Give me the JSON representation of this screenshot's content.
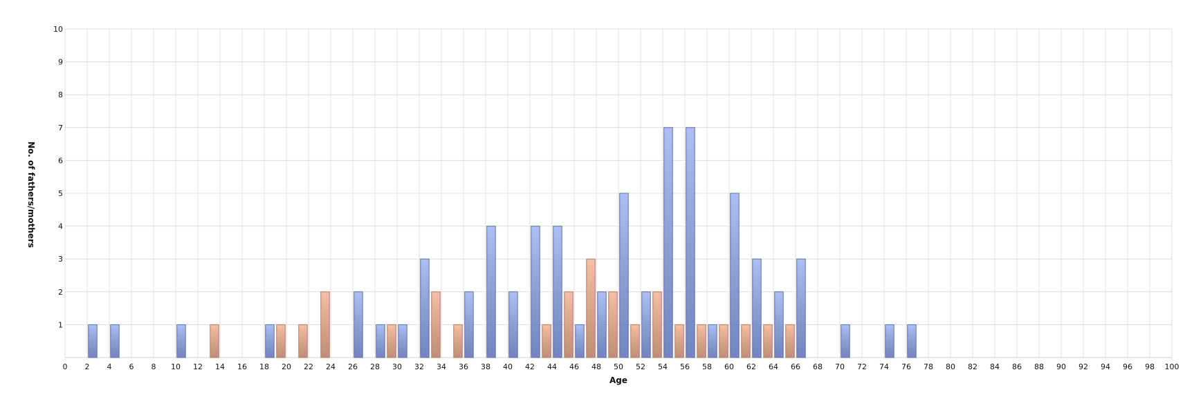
{
  "chart_data": {
    "type": "bar",
    "title": "",
    "xlabel": "Age",
    "ylabel": "No. of fathers/mothers",
    "xlim": [
      0,
      100
    ],
    "ylim": [
      0,
      10
    ],
    "x_tick_step": 2,
    "y_ticks": [
      1,
      2,
      3,
      4,
      5,
      6,
      7,
      8,
      9,
      10
    ],
    "grid": true,
    "legend": "none",
    "series": [
      {
        "color": "#a9c1f5",
        "edge": "#5a6fb5",
        "points": [
          {
            "x": 2.5,
            "y": 1
          },
          {
            "x": 4.5,
            "y": 1
          },
          {
            "x": 10.5,
            "y": 1
          },
          {
            "x": 18.5,
            "y": 1
          },
          {
            "x": 26.5,
            "y": 2
          },
          {
            "x": 28.5,
            "y": 1
          },
          {
            "x": 30.5,
            "y": 1
          },
          {
            "x": 32.5,
            "y": 3
          },
          {
            "x": 36.5,
            "y": 2
          },
          {
            "x": 38.5,
            "y": 4
          },
          {
            "x": 40.5,
            "y": 2
          },
          {
            "x": 42.5,
            "y": 4
          },
          {
            "x": 44.5,
            "y": 4
          },
          {
            "x": 46.5,
            "y": 1
          },
          {
            "x": 48.5,
            "y": 2
          },
          {
            "x": 50.5,
            "y": 5
          },
          {
            "x": 52.5,
            "y": 2
          },
          {
            "x": 54.5,
            "y": 7
          },
          {
            "x": 56.5,
            "y": 7
          },
          {
            "x": 58.5,
            "y": 1
          },
          {
            "x": 60.5,
            "y": 5
          },
          {
            "x": 62.5,
            "y": 3
          },
          {
            "x": 64.5,
            "y": 2
          },
          {
            "x": 66.5,
            "y": 3
          },
          {
            "x": 70.5,
            "y": 1
          },
          {
            "x": 74.5,
            "y": 1
          },
          {
            "x": 76.5,
            "y": 1
          }
        ]
      },
      {
        "color": "#f7bfa6",
        "edge": "#b57a62",
        "points": [
          {
            "x": 13.5,
            "y": 1
          },
          {
            "x": 19.5,
            "y": 1
          },
          {
            "x": 21.5,
            "y": 1
          },
          {
            "x": 23.5,
            "y": 2
          },
          {
            "x": 29.5,
            "y": 1
          },
          {
            "x": 33.5,
            "y": 2
          },
          {
            "x": 35.5,
            "y": 1
          },
          {
            "x": 43.5,
            "y": 1
          },
          {
            "x": 45.5,
            "y": 2
          },
          {
            "x": 47.5,
            "y": 3
          },
          {
            "x": 49.5,
            "y": 2
          },
          {
            "x": 51.5,
            "y": 1
          },
          {
            "x": 53.5,
            "y": 2
          },
          {
            "x": 55.5,
            "y": 1
          },
          {
            "x": 57.5,
            "y": 1
          },
          {
            "x": 59.5,
            "y": 1
          },
          {
            "x": 61.5,
            "y": 1
          },
          {
            "x": 63.5,
            "y": 1
          },
          {
            "x": 65.5,
            "y": 1
          }
        ]
      }
    ]
  }
}
